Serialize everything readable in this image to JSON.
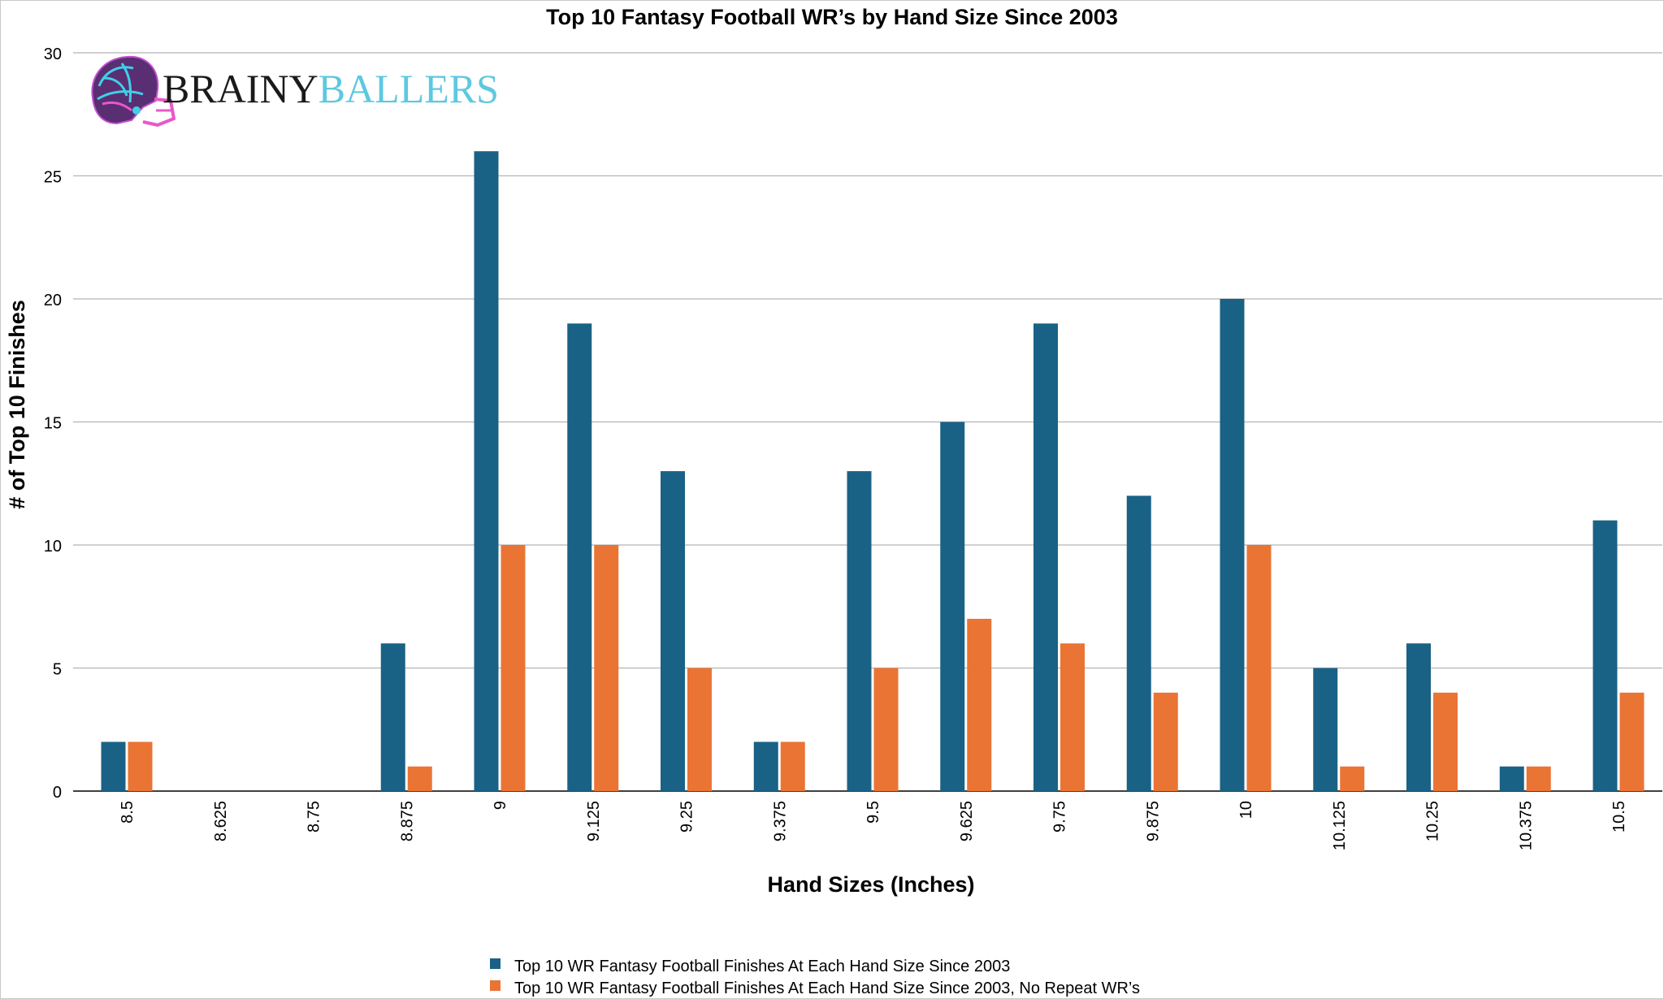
{
  "chart_data": {
    "type": "bar",
    "title": "Top 10 Fantasy Football WR’s by Hand Size Since 2003",
    "xlabel": "Hand Sizes (Inches)",
    "ylabel": "# of Top 10 Finishes",
    "ylim": [
      0,
      30
    ],
    "yticks": [
      0,
      5,
      10,
      15,
      20,
      25,
      30
    ],
    "grid": true,
    "legend_position": "bottom",
    "categories": [
      "8.5",
      "8.625",
      "8.75",
      "8.875",
      "9",
      "9.125",
      "9.25",
      "9.375",
      "9.5",
      "9.625",
      "9.75",
      "9.875",
      "10",
      "10.125",
      "10.25",
      "10.375",
      "10.5"
    ],
    "series": [
      {
        "name": "Top 10 WR Fantasy Football Finishes At Each Hand Size Since 2003",
        "color": "#1a6285",
        "values": [
          2,
          0,
          0,
          6,
          26,
          19,
          13,
          2,
          13,
          15,
          19,
          12,
          20,
          5,
          6,
          1,
          11
        ]
      },
      {
        "name": "Top 10 WR Fantasy Football Finishes At Each Hand Size Since 2003, No Repeat WR’s",
        "color": "#ea7434",
        "values": [
          2,
          0,
          0,
          1,
          10,
          10,
          5,
          2,
          5,
          7,
          6,
          4,
          10,
          1,
          4,
          1,
          4
        ]
      }
    ]
  },
  "logo": {
    "icon": "football-helmet-brain-icon",
    "text_part1": "BRAINY",
    "text_part2": "BALLERS",
    "color_part1": "#1a1a1a",
    "color_part2": "#5ec8e0"
  }
}
